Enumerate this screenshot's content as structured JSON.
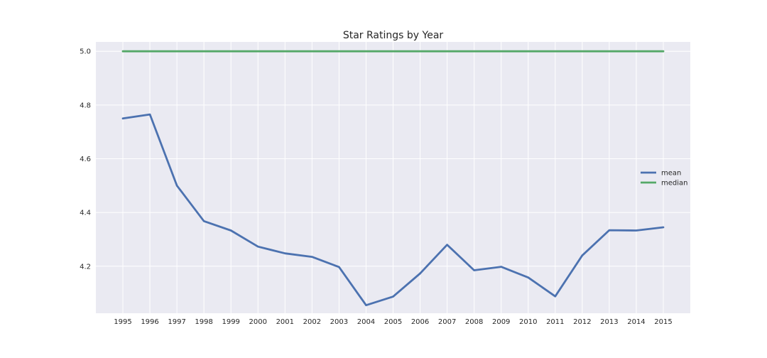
{
  "chart_data": {
    "type": "line",
    "title": "Star Ratings by Year",
    "xlabel": "",
    "ylabel": "",
    "x": [
      "1995",
      "1996",
      "1997",
      "1998",
      "1999",
      "2000",
      "2001",
      "2002",
      "2003",
      "2004",
      "2005",
      "2006",
      "2007",
      "2008",
      "2009",
      "2010",
      "2011",
      "2012",
      "2013",
      "2014",
      "2015"
    ],
    "y_ticks": [
      "4.2",
      "4.4",
      "4.6",
      "4.8",
      "5.0"
    ],
    "ylim": [
      4.025,
      5.035
    ],
    "grid": true,
    "legend_position": "right",
    "series": [
      {
        "name": "mean",
        "color": "#4c72b0",
        "values": [
          4.75,
          4.765,
          4.5,
          4.368,
          4.333,
          4.273,
          4.248,
          4.235,
          4.197,
          4.055,
          4.087,
          4.173,
          4.28,
          4.185,
          4.198,
          4.158,
          4.088,
          4.24,
          4.334,
          4.333,
          4.345
        ]
      },
      {
        "name": "median",
        "color": "#55a868",
        "values": [
          5.0,
          5.0,
          5.0,
          5.0,
          5.0,
          5.0,
          5.0,
          5.0,
          5.0,
          5.0,
          5.0,
          5.0,
          5.0,
          5.0,
          5.0,
          5.0,
          5.0,
          5.0,
          5.0,
          5.0,
          5.0
        ]
      }
    ],
    "colors": {
      "background": "#eaeaf2",
      "grid": "#ffffff"
    }
  }
}
